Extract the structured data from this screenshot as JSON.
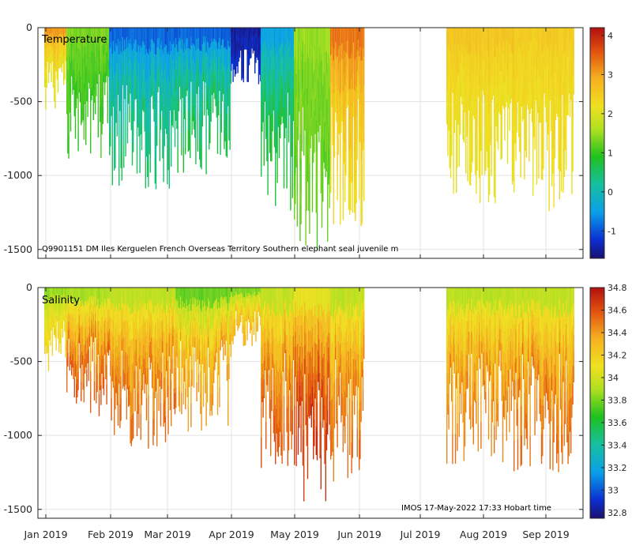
{
  "chart_data": [
    {
      "type": "heatmap",
      "title": "Temperature",
      "variable": "Temperature",
      "xlabel": "",
      "ylabel": "",
      "x_tick_labels": [
        "Jan 2019",
        "Feb 2019",
        "Mar 2019",
        "Apr 2019",
        "May 2019",
        "Jun 2019",
        "Jul 2019",
        "Aug 2019",
        "Sep 2019"
      ],
      "y_tick_labels": [
        "0",
        "-500",
        "-1000",
        "-1500"
      ],
      "y_ticks": [
        0,
        -500,
        -1000,
        -1500
      ],
      "ylim": [
        -1560,
        0
      ],
      "colorbar": {
        "range": [
          -1.7,
          4.2
        ],
        "ticks": [
          -1,
          0,
          1,
          2,
          3,
          4
        ],
        "tick_labels": [
          "-1",
          "0",
          "1",
          "2",
          "3",
          "4"
        ]
      },
      "annotation": "Q9901151 DM Iles Kerguelen French Overseas Territory Southern elephant seal juvenile m",
      "grid": true,
      "profiles_by_period": [
        {
          "period": "Jan 2019",
          "max_depth_m": -600,
          "surface_value": 3.5,
          "deep_value": 2.0
        },
        {
          "period": "late Jan 2019",
          "max_depth_m": -900,
          "surface_value": 1.5,
          "deep_value": 1.0
        },
        {
          "period": "Feb 2019",
          "max_depth_m": -1100,
          "surface_value": -1.5,
          "deep_value": 0.6
        },
        {
          "period": "Mar 2019",
          "max_depth_m": -1000,
          "surface_value": -1.6,
          "deep_value": 0.8
        },
        {
          "period": "Apr 2019",
          "max_depth_m": -400,
          "surface_value": -1.6,
          "deep_value": -1.3
        },
        {
          "period": "late Apr 2019",
          "max_depth_m": -1250,
          "surface_value": -1.0,
          "deep_value": 0.9
        },
        {
          "period": "May 2019",
          "max_depth_m": -1500,
          "surface_value": 1.6,
          "deep_value": 1.2
        },
        {
          "period": "Jun 2019",
          "max_depth_m": -1350,
          "surface_value": 3.8,
          "deep_value": 2.2
        },
        {
          "period": "Aug 2019",
          "max_depth_m": -1200,
          "surface_value": 2.8,
          "deep_value": 2.1
        },
        {
          "period": "Sep 2019",
          "max_depth_m": -1250,
          "surface_value": 2.6,
          "deep_value": 2.2
        }
      ]
    },
    {
      "type": "heatmap",
      "title": "Salinity",
      "variable": "Salinity",
      "xlabel": "",
      "ylabel": "",
      "x_tick_labels": [
        "Jan 2019",
        "Feb 2019",
        "Mar 2019",
        "Apr 2019",
        "May 2019",
        "Jun 2019",
        "Jul 2019",
        "Aug 2019",
        "Sep 2019"
      ],
      "y_tick_labels": [
        "0",
        "-500",
        "-1000",
        "-1500"
      ],
      "y_ticks": [
        0,
        -500,
        -1000,
        -1500
      ],
      "ylim": [
        -1560,
        0
      ],
      "colorbar": {
        "range": [
          32.75,
          34.8
        ],
        "ticks": [
          32.8,
          33,
          33.2,
          33.4,
          33.6,
          33.8,
          34,
          34.2,
          34.4,
          34.6,
          34.8
        ],
        "tick_labels": [
          "32.8",
          "33",
          "33.2",
          "33.4",
          "33.6",
          "33.8",
          "34",
          "34.2",
          "34.4",
          "34.6",
          "34.8"
        ]
      },
      "annotation": "IMOS 17-May-2022 17:33 Hobart time",
      "grid": true,
      "profiles_by_period": [
        {
          "period": "Jan 2019",
          "max_depth_m": -600,
          "surface_value": 33.7,
          "deep_value": 34.2
        },
        {
          "period": "late Jan 2019",
          "max_depth_m": -900,
          "surface_value": 33.6,
          "deep_value": 34.6
        },
        {
          "period": "Feb 2019",
          "max_depth_m": -1100,
          "surface_value": 33.7,
          "deep_value": 34.55
        },
        {
          "period": "Mar 2019",
          "max_depth_m": -1000,
          "surface_value": 33.5,
          "deep_value": 34.45
        },
        {
          "period": "Apr 2019",
          "max_depth_m": -400,
          "surface_value": 33.6,
          "deep_value": 34.35
        },
        {
          "period": "late Apr 2019",
          "max_depth_m": -1250,
          "surface_value": 33.7,
          "deep_value": 34.6
        },
        {
          "period": "May 2019",
          "max_depth_m": -1500,
          "surface_value": 33.8,
          "deep_value": 34.72
        },
        {
          "period": "Jun 2019",
          "max_depth_m": -1350,
          "surface_value": 33.7,
          "deep_value": 34.55
        },
        {
          "period": "Aug 2019",
          "max_depth_m": -1200,
          "surface_value": 33.7,
          "deep_value": 34.5
        },
        {
          "period": "Sep 2019",
          "max_depth_m": -1250,
          "surface_value": 33.7,
          "deep_value": 34.55
        }
      ]
    }
  ]
}
